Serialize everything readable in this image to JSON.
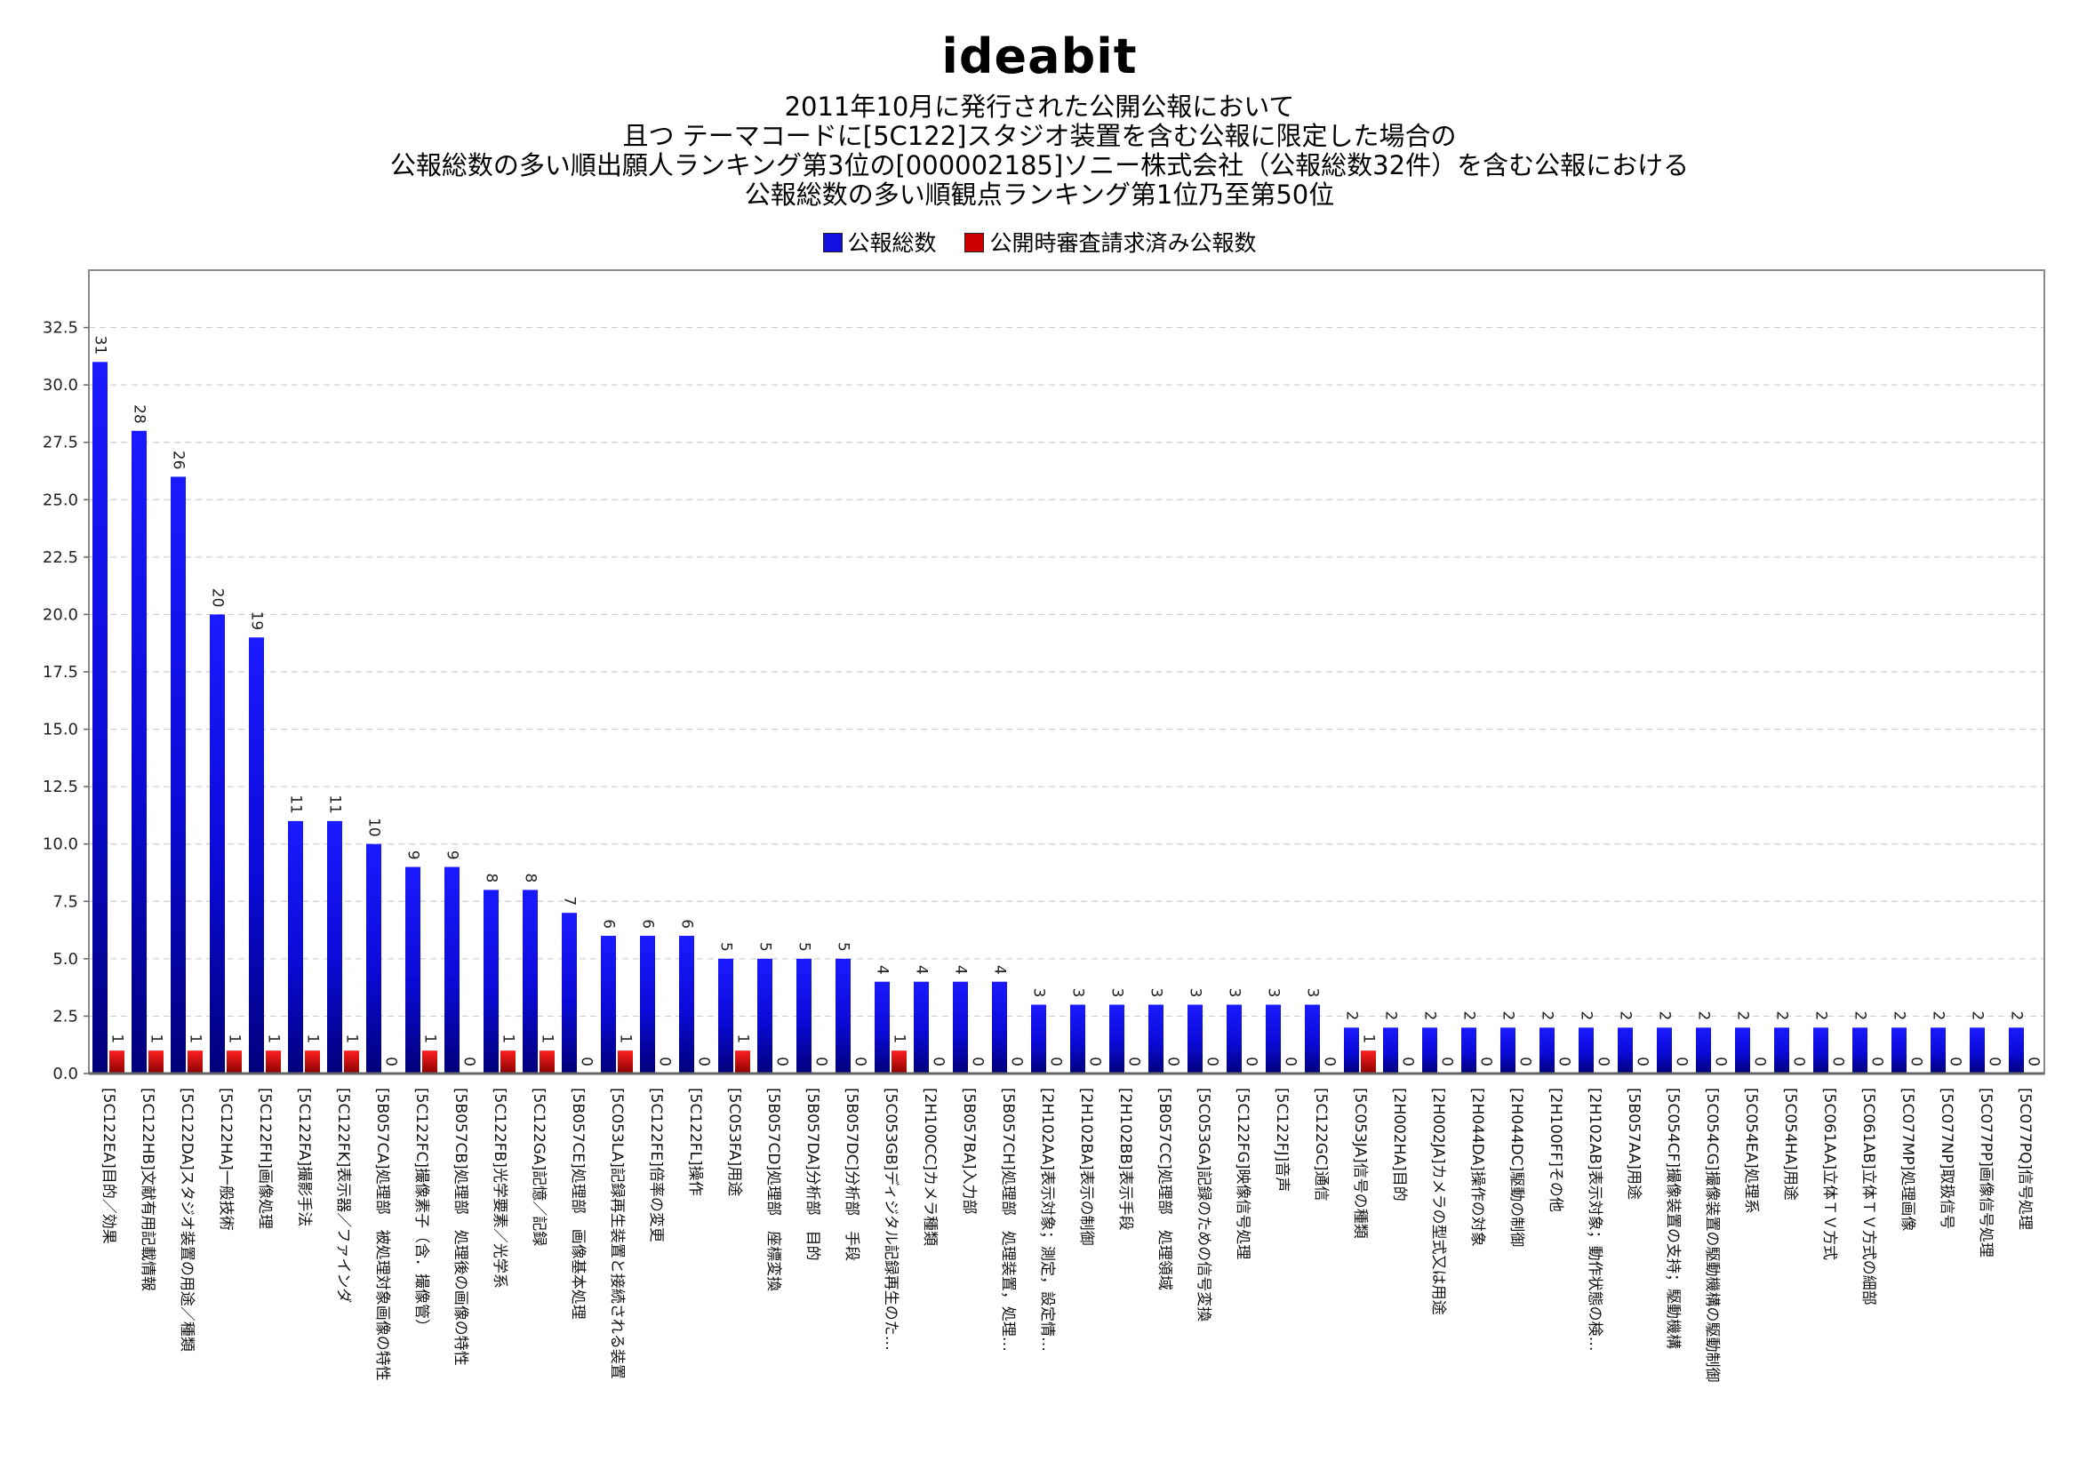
{
  "logo": "ideabit",
  "title_lines": [
    "2011年10月に発行された公開公報において",
    "且つ テーマコードに[5C122]スタジオ装置を含む公報に限定した場合の",
    "公報総数の多い順出願人ランキング第3位の[000002185]ソニー株式会社（公報総数32件）を含む公報における",
    "公報総数の多い順観点ランキング第1位乃至第50位"
  ],
  "legend": [
    {
      "name": "公報総数",
      "color": "#1010e0"
    },
    {
      "name": "公開時審査請求済み公報数",
      "color": "#cc0000"
    }
  ],
  "chart_data": {
    "type": "bar",
    "title": "",
    "xlabel": "",
    "ylabel": "",
    "ylim": [
      0,
      35
    ],
    "yticks": [
      0.0,
      2.5,
      5.0,
      7.5,
      10.0,
      12.5,
      15.0,
      17.5,
      20.0,
      22.5,
      25.0,
      27.5,
      30.0,
      32.5
    ],
    "ytick_labels": [
      "0.0",
      "2.5",
      "5.0",
      "7.5",
      "10.0",
      "12.5",
      "15.0",
      "17.5",
      "20.0",
      "22.5",
      "25.0",
      "27.5",
      "30.0",
      "32.5"
    ],
    "grid": true,
    "legend_position": "top-center",
    "categories": [
      "[5C122EA]目的／効果",
      "[5C122HB]文献有用記載情報",
      "[5C122DA]スタジオ装置の用途／種類",
      "[5C122HA]一般技術",
      "[5C122FH]画像処理",
      "[5C122FA]撮影手法",
      "[5C122FK]表示器／ファインダ",
      "[5B057CA]処理部　被処理対象画像の特性",
      "[5C122FC]撮像素子（含．撮像管）",
      "[5B057CB]処理部　処理後の画像の特性",
      "[5C122FB]光学要素／光学系",
      "[5C122GA]記憶／記録",
      "[5B057CE]処理部　画像基本処理",
      "[5C053LA]記録再生装置と接続される装置",
      "[5C122FE]倍率の変更",
      "[5C122FL]操作",
      "[5C053FA]用途",
      "[5B057CD]処理部　座標変換",
      "[5B057DA]分析部　目的",
      "[5B057DC]分析部　手段",
      "[5C053GB]ディジタル記録再生のた…",
      "[2H100CC]カメラ種類",
      "[5B057BA]入力部",
      "[5B057CH]処理部　処理装置，処理…",
      "[2H102AA]表示対象；測定，設定情…",
      "[2H102BA]表示の制御",
      "[2H102BB]表示手段",
      "[5B057CC]処理部　処理領域",
      "[5C053GA]記録のための信号変換",
      "[5C122FG]映像信号処理",
      "[5C122FJ]音声",
      "[5C122GC]通信",
      "[5C053JA]信号の種類",
      "[2H002HA]目的",
      "[2H002JA]カメラの型式又は用途",
      "[2H044DA]操作の対象",
      "[2H044DC]駆動の制御",
      "[2H100FF]その他",
      "[2H102AB]表示対象；動作状態の検…",
      "[5B057AA]用途",
      "[5C054CF]撮像装置の支持；駆動機構",
      "[5C054CG]撮像装置の駆動機構の駆動制御",
      "[5C054EA]処理系",
      "[5C054HA]用途",
      "[5C061AA]立体ＴＶ方式",
      "[5C061AB]立体ＴＶ方式の細部",
      "[5C077MP]処理画像",
      "[5C077NP]取扱信号",
      "[5C077PP]画像信号処理",
      "[5C077PQ]信号処理"
    ],
    "series": [
      {
        "name": "公報総数",
        "values": [
          31,
          28,
          26,
          20,
          19,
          11,
          11,
          10,
          9,
          9,
          8,
          8,
          7,
          6,
          6,
          6,
          5,
          5,
          5,
          5,
          4,
          4,
          4,
          4,
          3,
          3,
          3,
          3,
          3,
          3,
          3,
          3,
          2,
          2,
          2,
          2,
          2,
          2,
          2,
          2,
          2,
          2,
          2,
          2,
          2,
          2,
          2,
          2,
          2,
          2
        ]
      },
      {
        "name": "公開時審査請求済み公報数",
        "values": [
          1,
          1,
          1,
          1,
          1,
          1,
          1,
          0,
          1,
          0,
          1,
          1,
          0,
          1,
          0,
          0,
          1,
          0,
          0,
          0,
          1,
          0,
          0,
          0,
          0,
          0,
          0,
          0,
          0,
          0,
          0,
          0,
          1,
          0,
          0,
          0,
          0,
          0,
          0,
          0,
          0,
          0,
          0,
          0,
          0,
          0,
          0,
          0,
          0,
          0
        ]
      }
    ]
  }
}
